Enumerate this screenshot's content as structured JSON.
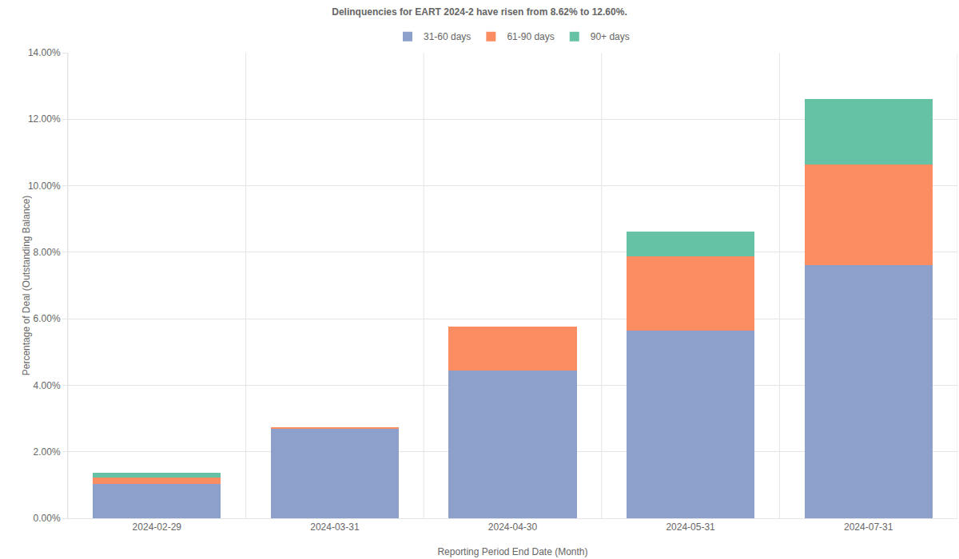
{
  "chart_data": {
    "type": "bar",
    "title": "Delinquencies for EART 2024-2 have risen from 8.62% to 12.60%.",
    "x_label": "Reporting Period End Date (Month)",
    "y_label": "Percentage of Deal (Outstanding Balance)",
    "categories": [
      "2024-02-29",
      "2024-03-31",
      "2024-04-30",
      "2024-05-31",
      "2024-07-31"
    ],
    "series": [
      {
        "name": "31-60 days",
        "color": "#8da0cb",
        "values": [
          1.03,
          2.69,
          4.44,
          5.64,
          7.61
        ]
      },
      {
        "name": "61-90 days",
        "color": "#fc8d62",
        "values": [
          0.19,
          0.05,
          1.32,
          2.24,
          3.03
        ]
      },
      {
        "name": "90+ days",
        "color": "#66c2a5",
        "values": [
          0.15,
          0,
          0,
          0.74,
          1.96
        ]
      }
    ],
    "stacked": true,
    "grid": true,
    "legend": "top",
    "ylim": [
      0,
      14
    ],
    "yticks": [
      {
        "value": 0,
        "label": "0.00%"
      },
      {
        "value": 2,
        "label": "2.00%"
      },
      {
        "value": 4,
        "label": "4.00%"
      },
      {
        "value": 6,
        "label": "6.00%"
      },
      {
        "value": 8,
        "label": "8.00%"
      },
      {
        "value": 10,
        "label": "10.00%"
      },
      {
        "value": 12,
        "label": "12.00%"
      },
      {
        "value": 14,
        "label": "14.00%"
      }
    ]
  }
}
